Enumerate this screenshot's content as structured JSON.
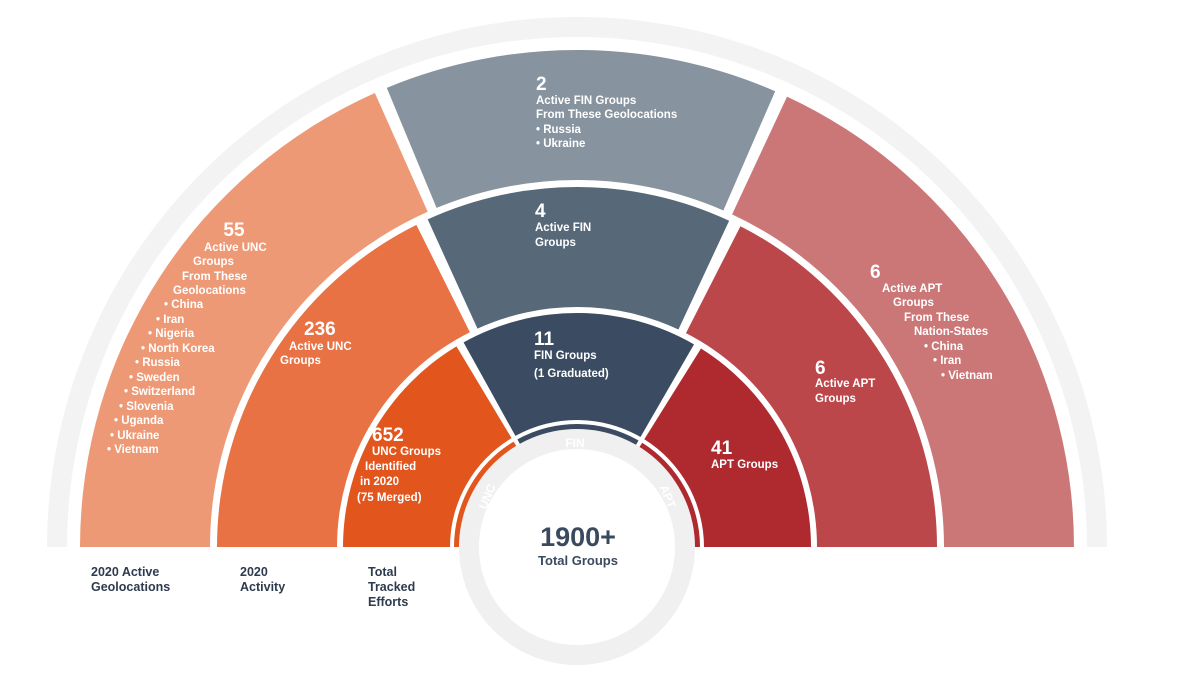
{
  "colors": {
    "outer_track": "#f3f3f3",
    "unc_outer": "#ee9975",
    "unc_mid": "#e97244",
    "unc_inner": "#e2561e",
    "fin_outer": "#87939e",
    "fin_mid": "#576879",
    "fin_inner": "#3b4b61",
    "apt_outer": "#cb7778",
    "apt_mid": "#bb474b",
    "apt_inner": "#ae2a2f",
    "inner_unc": "#e2561e",
    "inner_fin": "#3b4b61",
    "inner_apt": "#ae2a2f",
    "label_text": "#2d3b4e"
  },
  "segments": [
    {
      "id": "unc-geolocations",
      "number": "55",
      "lines": [
        "Active UNC",
        "Groups",
        "From These",
        "Geolocations",
        "• China",
        "• Iran",
        "• Nigeria",
        "• North Korea",
        "• Russia",
        "• Sweden",
        "• Switzerland",
        "• Slovenia",
        "• Uganda",
        "• Ukraine",
        "• Vietnam"
      ]
    },
    {
      "id": "fin-geolocations",
      "number": "2",
      "lines": [
        "Active FIN Groups",
        "From These Geolocations",
        "• Russia",
        "• Ukraine"
      ]
    },
    {
      "id": "apt-nation-states",
      "number": "6",
      "lines": [
        "Active APT",
        "Groups",
        "From These",
        "Nation-States",
        "• China",
        "• Iran",
        "• Vietnam"
      ]
    },
    {
      "id": "unc-activity",
      "number": "236",
      "lines": [
        "Active UNC",
        "Groups"
      ]
    },
    {
      "id": "fin-activity",
      "number": "4",
      "lines": [
        "Active FIN",
        "Groups"
      ]
    },
    {
      "id": "apt-activity",
      "number": "6",
      "lines": [
        "Active APT",
        "Groups"
      ]
    },
    {
      "id": "unc-tracked",
      "number": "652",
      "lines": [
        "UNC Groups",
        "Identified",
        "in 2020",
        "(75 Merged)"
      ]
    },
    {
      "id": "fin-tracked",
      "number": "11",
      "lines": [
        "FIN Groups",
        "(1 Graduated)"
      ]
    },
    {
      "id": "apt-tracked",
      "number": "41",
      "lines": [
        "APT Groups"
      ]
    }
  ],
  "inner_labels": {
    "unc": "UNC",
    "fin": "FIN",
    "apt": "APT"
  },
  "center": {
    "number": "1900+",
    "label": "Total Groups"
  },
  "band_labels": [
    {
      "id": "geolocations",
      "lines": [
        "2020 Active",
        "Geolocations"
      ]
    },
    {
      "id": "activity",
      "lines": [
        "2020",
        "Activity"
      ]
    },
    {
      "id": "tracked",
      "lines": [
        "Total",
        "Tracked",
        "Efforts"
      ]
    }
  ]
}
